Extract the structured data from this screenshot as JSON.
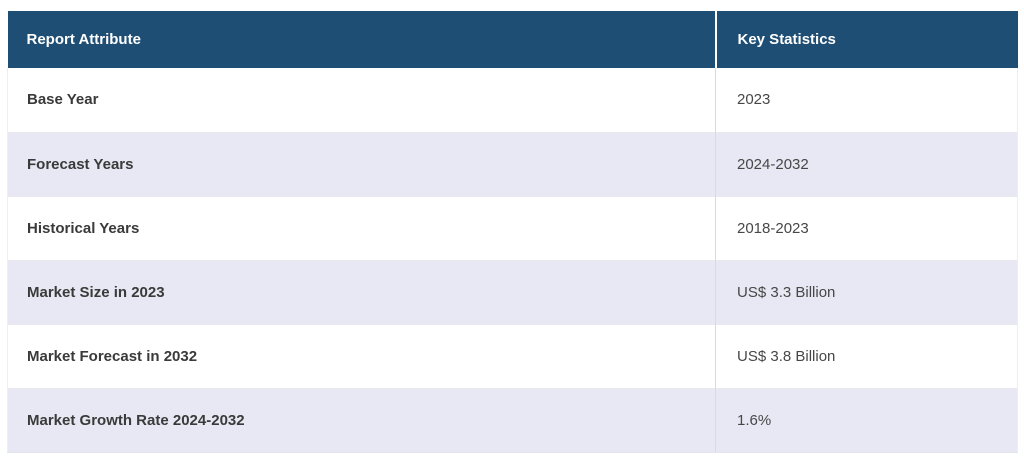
{
  "table": {
    "columns": [
      {
        "label": "Report Attribute"
      },
      {
        "label": "Key Statistics"
      }
    ],
    "rows": [
      {
        "attribute": "Base Year",
        "value": "2023"
      },
      {
        "attribute": "Forecast Years",
        "value": "2024-2032"
      },
      {
        "attribute": "Historical Years",
        "value": "2018-2023"
      },
      {
        "attribute": "Market Size in 2023",
        "value": "US$ 3.3 Billion"
      },
      {
        "attribute": "Market Forecast in 2032",
        "value": "US$ 3.8 Billion"
      },
      {
        "attribute": "Market Growth Rate 2024-2032",
        "value": "1.6%"
      }
    ],
    "colors": {
      "header_bg": "#1f4e74",
      "header_text": "#ffffff",
      "row_bg": "#ffffff",
      "row_alt_bg": "#e7e8f3",
      "body_text": "#3c3c3c"
    }
  },
  "chart_data": {
    "type": "table",
    "columns": [
      "Report Attribute",
      "Key Statistics"
    ],
    "rows": [
      [
        "Base Year",
        "2023"
      ],
      [
        "Forecast Years",
        "2024-2032"
      ],
      [
        "Historical Years",
        "2018-2023"
      ],
      [
        "Market Size in 2023",
        "US$ 3.3 Billion"
      ],
      [
        "Market Forecast in 2032",
        "US$ 3.8 Billion"
      ],
      [
        "Market Growth Rate 2024-2032",
        "1.6%"
      ]
    ],
    "title": "",
    "layout_hints": {
      "header_background": "#1f4e74",
      "alternating_row_background": "#e7e8f3",
      "column_width_ratio": [
        0.7,
        0.3
      ]
    }
  }
}
